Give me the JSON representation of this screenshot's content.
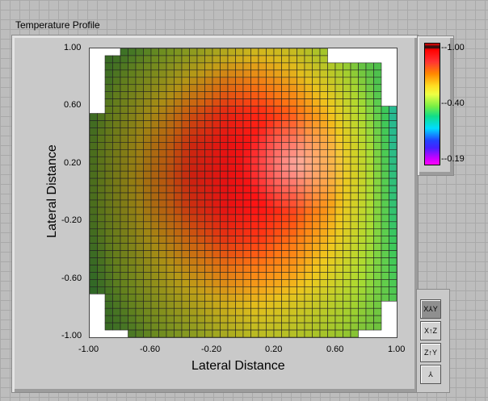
{
  "graph": {
    "title": "Temperature Profile"
  },
  "chart_data": {
    "type": "heatmap",
    "title": "",
    "xlabel": "Lateral Distance",
    "ylabel": "Lateral Distance",
    "xlim": [
      -1,
      1
    ],
    "ylim": [
      -1,
      1
    ],
    "xticks": [
      "-1.00",
      "-0.60",
      "-0.20",
      "0.20",
      "0.60",
      "1.00"
    ],
    "yticks": [
      "1.00",
      "0.60",
      "0.20",
      "-0.20",
      "-0.60",
      "-1.00"
    ],
    "colorbar": {
      "ticks": [
        "-1.00",
        "-0.40",
        "-0.19"
      ],
      "colors": [
        "#ff0000",
        "#ff8800",
        "#ffdd22",
        "#77ee44",
        "#11dd88",
        "#00ddff",
        "#2244ff",
        "#cc00ff",
        "#ff00ff"
      ]
    },
    "z_grid_coarse": [
      [
        null,
        -0.55,
        -0.6,
        -0.66,
        -0.72,
        -0.75,
        -0.72,
        -0.62,
        -0.52,
        null
      ],
      [
        -0.52,
        -0.62,
        -0.7,
        -0.8,
        -0.88,
        -0.88,
        -0.82,
        -0.72,
        -0.58,
        -0.45
      ],
      [
        -0.55,
        -0.68,
        -0.8,
        -0.92,
        -0.98,
        -0.98,
        -0.92,
        -0.8,
        -0.62,
        -0.44
      ],
      [
        -0.58,
        -0.72,
        -0.86,
        -0.97,
        -1.0,
        -1.0,
        -0.97,
        -0.85,
        -0.66,
        -0.44
      ],
      [
        -0.58,
        -0.74,
        -0.88,
        -0.98,
        -1.0,
        -1.0,
        -0.98,
        -0.86,
        -0.68,
        -0.45
      ],
      [
        -0.58,
        -0.72,
        -0.86,
        -0.96,
        -1.0,
        -1.0,
        -0.96,
        -0.85,
        -0.67,
        -0.46
      ],
      [
        -0.56,
        -0.68,
        -0.8,
        -0.9,
        -0.96,
        -0.96,
        -0.9,
        -0.8,
        -0.65,
        -0.48
      ],
      [
        -0.54,
        -0.64,
        -0.74,
        -0.82,
        -0.88,
        -0.88,
        -0.84,
        -0.74,
        -0.62,
        -0.5
      ],
      [
        -0.52,
        -0.6,
        -0.68,
        -0.74,
        -0.78,
        -0.78,
        -0.74,
        -0.68,
        -0.6,
        -0.52
      ],
      [
        null,
        -0.56,
        -0.62,
        -0.66,
        -0.7,
        -0.7,
        -0.68,
        -0.64,
        -0.58,
        null
      ]
    ]
  },
  "controls": {
    "view_buttons": [
      "xy-view",
      "xz-view",
      "yz-view",
      "default-view"
    ]
  }
}
